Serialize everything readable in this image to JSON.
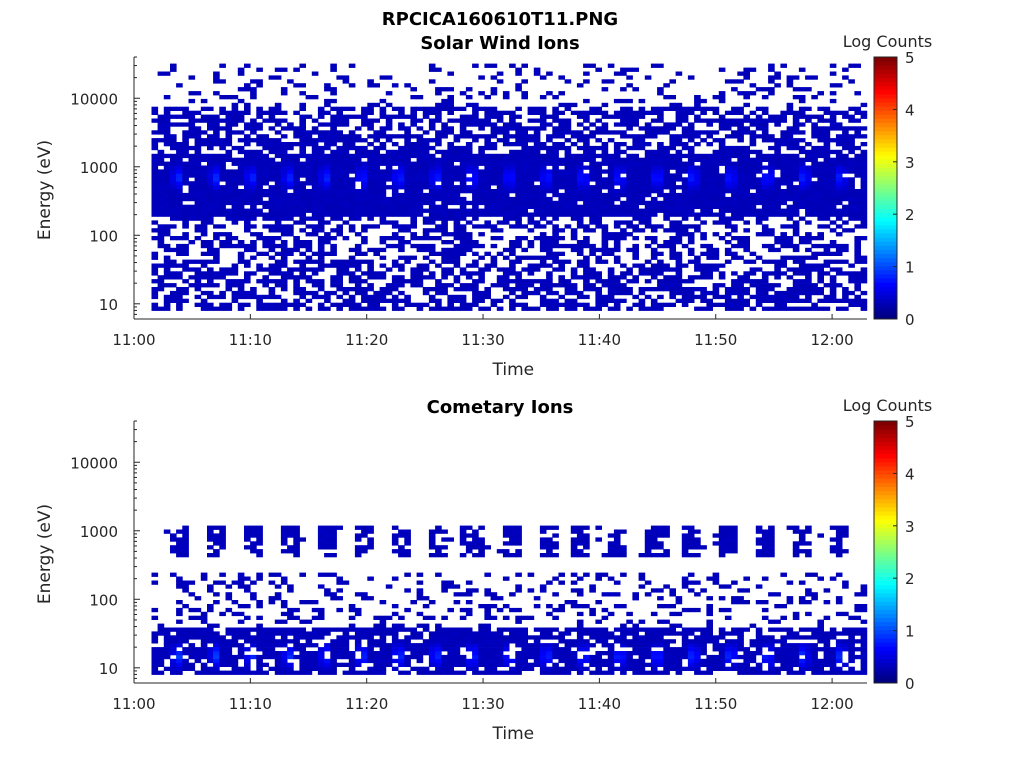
{
  "figure_title": "RPCICA160610T11.PNG",
  "chart_data": [
    {
      "type": "heatmap",
      "title": "Solar Wind Ions",
      "xlabel": "Time",
      "ylabel": "Energy (eV)",
      "colorbar_label": "Log Counts",
      "x_ticks": [
        "11:00",
        "11:10",
        "11:20",
        "11:30",
        "11:40",
        "11:50",
        "12:00"
      ],
      "y_ticks": [
        "10",
        "100",
        "1000",
        "10000"
      ],
      "y_scale": "log",
      "ylim": [
        6,
        40000
      ],
      "xlim_minutes": [
        0,
        63
      ],
      "data_start_minute": 1.5,
      "data_end_minute": 62.5,
      "colorbar_ticks": [
        "0",
        "1",
        "2",
        "3",
        "4",
        "5"
      ],
      "clim": [
        0,
        5
      ],
      "colormap": "jet",
      "sparse_energy_range_eV": [
        8,
        30000
      ],
      "dense_band_energy_eV": [
        200,
        1500
      ],
      "peak_energy_eV": 700,
      "peak_times_min": [
        3.5,
        6.7,
        9.8,
        13.0,
        16.2,
        19.3,
        22.5,
        25.7,
        28.8,
        32.0,
        35.2,
        38.3,
        41.5,
        44.7,
        47.8,
        51.0,
        54.2,
        57.3,
        60.5
      ],
      "peak_log_counts": 0.7
    },
    {
      "type": "heatmap",
      "title": "Cometary Ions",
      "xlabel": "Time",
      "ylabel": "Energy (eV)",
      "colorbar_label": "Log Counts",
      "x_ticks": [
        "11:00",
        "11:10",
        "11:20",
        "11:30",
        "11:40",
        "11:50",
        "12:00"
      ],
      "y_ticks": [
        "10",
        "100",
        "1000",
        "10000"
      ],
      "y_scale": "log",
      "ylim": [
        6,
        40000
      ],
      "xlim_minutes": [
        0,
        63
      ],
      "data_start_minute": 1.5,
      "data_end_minute": 62.5,
      "colorbar_ticks": [
        "0",
        "1",
        "2",
        "3",
        "4",
        "5"
      ],
      "clim": [
        0,
        5
      ],
      "colormap": "jet",
      "low_band_energy_eV": [
        8,
        40
      ],
      "mid_sparse_energy_eV": [
        40,
        250
      ],
      "high_blob_energy_eV": [
        400,
        1200
      ],
      "peak_energy_eV": 15,
      "peak_times_min": [
        3.5,
        6.7,
        9.8,
        13.0,
        16.2,
        19.3,
        22.5,
        25.7,
        28.8,
        32.0,
        35.2,
        38.3,
        41.5,
        44.7,
        47.8,
        51.0,
        54.2,
        57.3,
        60.5
      ],
      "peak_log_counts": 0.8
    }
  ]
}
